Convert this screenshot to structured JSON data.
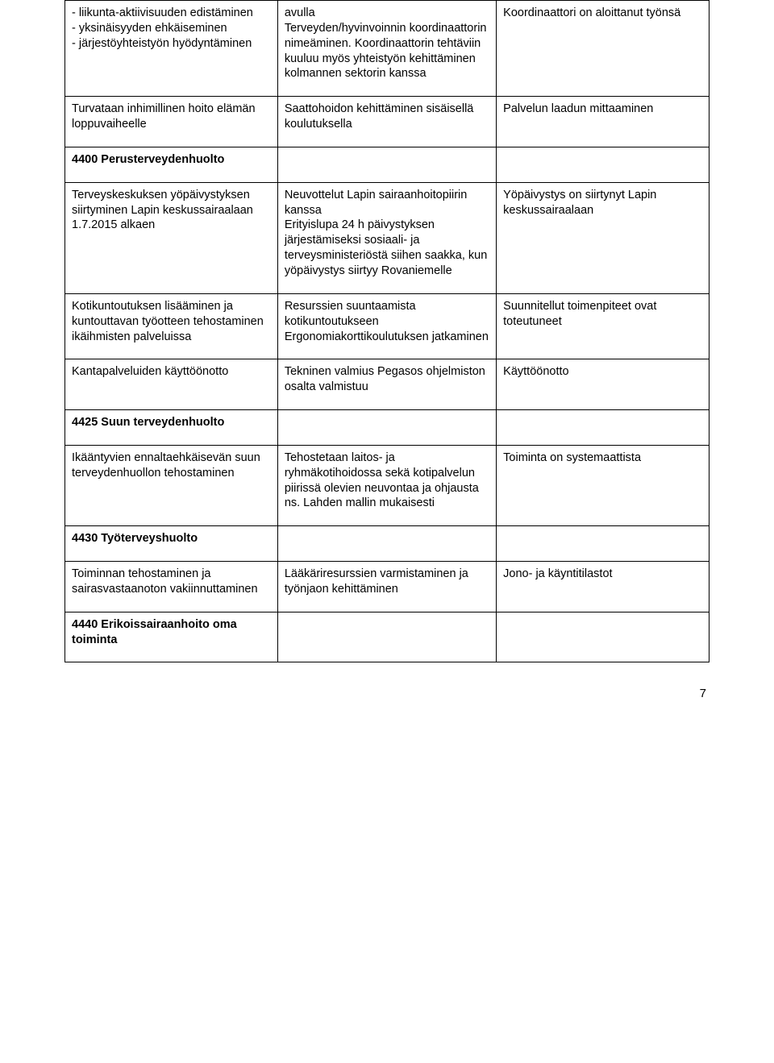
{
  "row1": {
    "c1": "- liikunta-aktiivisuuden edistäminen\n- yksinäisyyden ehkäiseminen\n- järjestöyhteistyön hyödyntäminen",
    "c2": "avulla\nTerveyden/hyvinvoinnin koordinaattorin nimeäminen. Koordinaattorin tehtäviin kuuluu myös yhteistyön kehittäminen kolmannen sektorin kanssa",
    "c3": "Koordinaattori on aloittanut työnsä"
  },
  "row2": {
    "c1": "Turvataan inhimillinen hoito elämän\nloppuvaiheelle",
    "c2": "Saattohoidon kehittäminen sisäisellä koulutuksella",
    "c3": "Palvelun laadun mittaaminen"
  },
  "row3": {
    "c1": "4400 Perusterveydenhuolto",
    "c2": "",
    "c3": ""
  },
  "row4": {
    "c1": "Terveyskeskuksen yöpäivystyksen\nsiirtyminen Lapin keskussairaalaan\n1.7.2015 alkaen",
    "c2": "Neuvottelut Lapin sairaanhoitopiirin\nkanssa\nErityislupa 24 h päivystyksen järjestämiseksi sosiaali- ja terveysministeriöstä siihen saakka, kun yöpäivystys siirtyy Rovaniemelle",
    "c3": "Yöpäivystys on siirtynyt Lapin keskussairaalaan"
  },
  "row5": {
    "c1": "Kotikuntoutuksen lisääminen ja kuntouttavan työotteen tehostaminen ikäihmisten palveluissa",
    "c2": "Resurssien suuntaamista kotikuntoutukseen\nErgonomiakorttikoulutuksen jatkaminen",
    "c3": "Suunnitellut toimenpiteet ovat toteutuneet"
  },
  "row6": {
    "c1": "Kantapalveluiden käyttöönotto",
    "c2": "Tekninen valmius Pegasos ohjelmiston osalta valmistuu",
    "c3": "Käyttöönotto"
  },
  "row7": {
    "c1": "4425 Suun terveydenhuolto",
    "c2": "",
    "c3": ""
  },
  "row8": {
    "c1": "Ikääntyvien ennaltaehkäisevän suun terveydenhuollon tehostaminen",
    "c2": "Tehostetaan laitos- ja ryhmäkotihoidossa sekä kotipalvelun piirissä olevien neuvontaa ja ohjausta ns. Lahden mallin mukaisesti",
    "c3": "Toiminta on systemaattista"
  },
  "row9": {
    "c1": "4430 Työterveyshuolto",
    "c2": "",
    "c3": ""
  },
  "row10": {
    "c1": "Toiminnan tehostaminen ja sairasvastaanoton vakiinnuttaminen",
    "c2": "Lääkäriresurssien varmistaminen ja työnjaon kehittäminen",
    "c3": "Jono- ja käyntitilastot"
  },
  "row11": {
    "c1": "4440 Erikoissairaanhoito oma toiminta",
    "c2": "",
    "c3": ""
  },
  "pageNumber": "7",
  "boldRows": [
    "row3",
    "row7",
    "row9",
    "row11"
  ],
  "colors": {
    "background": "#ffffff",
    "text": "#000000",
    "border": "#000000"
  },
  "fontSizePt": 11,
  "pageWidth": 960,
  "pageHeight": 1319
}
